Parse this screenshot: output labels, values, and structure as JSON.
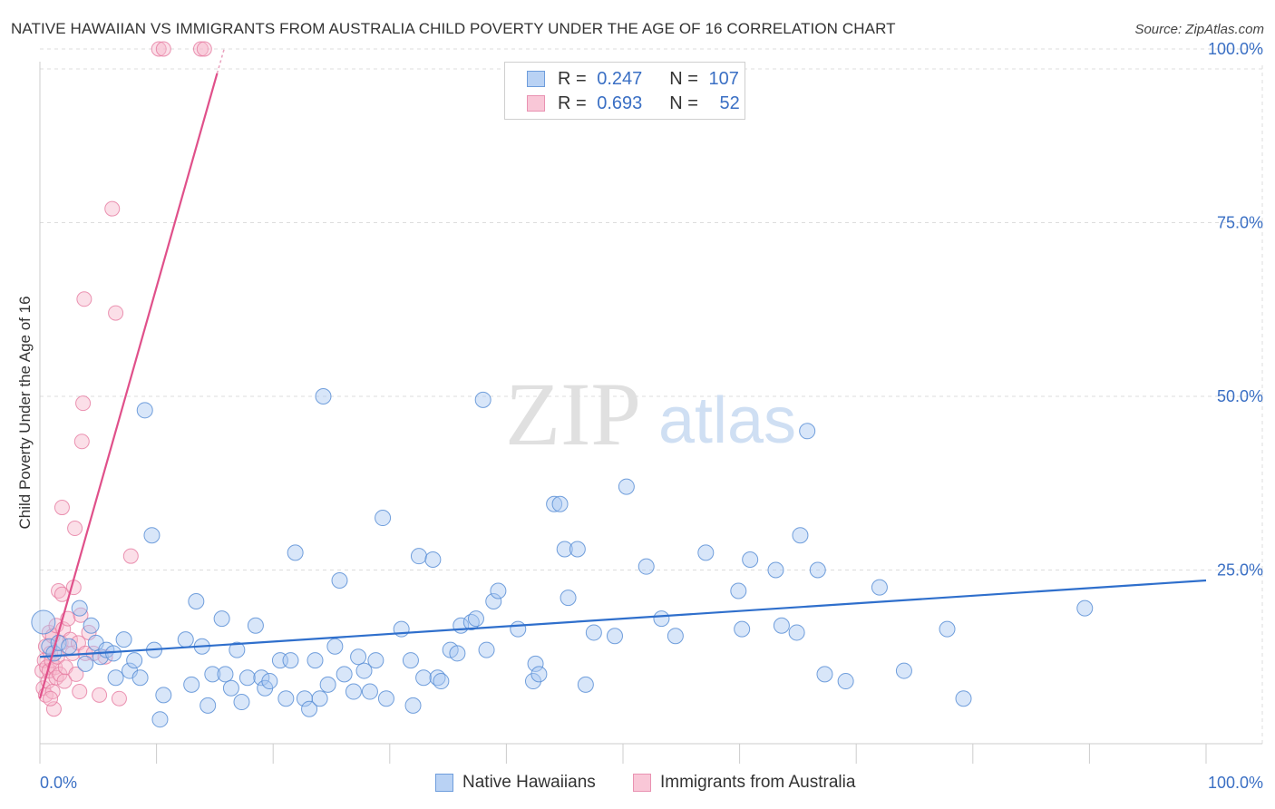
{
  "title": "NATIVE HAWAIIAN VS IMMIGRANTS FROM AUSTRALIA CHILD POVERTY UNDER THE AGE OF 16 CORRELATION CHART",
  "source": "Source: ZipAtlas.com",
  "watermark": {
    "zip": "ZIP",
    "atlas": "atlas"
  },
  "legend": {
    "rows": [
      {
        "r_label": "R = ",
        "r_value": "0.247",
        "n_label": "N = ",
        "n_value": "107"
      },
      {
        "r_label": "R = ",
        "r_value": "0.693",
        "n_label": "N = ",
        "n_value": "52"
      }
    ]
  },
  "bottom_legend": {
    "series1": "Native Hawaiians",
    "series2": "Immigrants from Australia"
  },
  "colors": {
    "blue_fill": "#a9c8f2",
    "blue_stroke": "#5b8fd6",
    "blue_line": "#2f6fcc",
    "pink_fill": "#f7b8cd",
    "pink_stroke": "#e67aa0",
    "pink_line": "#e0508a",
    "axis_text": "#3a6fc4",
    "grid": "#dddddd"
  },
  "chart_data": {
    "type": "scatter",
    "title": "NATIVE HAWAIIAN VS IMMIGRANTS FROM AUSTRALIA CHILD POVERTY UNDER THE AGE OF 16 CORRELATION CHART",
    "xlabel": "",
    "ylabel": "Child Poverty Under the Age of 16",
    "xlim": [
      0,
      100
    ],
    "ylim": [
      0,
      103
    ],
    "x_tick_labels": {
      "left": "0.0%",
      "right": "100.0%"
    },
    "y_ticks": [
      25,
      50,
      75,
      100
    ],
    "y_tick_labels": [
      "25.0%",
      "50.0%",
      "75.0%",
      "100.0%"
    ],
    "grid": true,
    "series": [
      {
        "name": "Native Hawaiians",
        "R": 0.247,
        "N": 107,
        "trend": {
          "x0": 0,
          "y0": 12.5,
          "x1": 100,
          "y1": 23.5
        },
        "points": [
          [
            0.3,
            17.5
          ],
          [
            0.8,
            14
          ],
          [
            1.2,
            13
          ],
          [
            1.6,
            14.5
          ],
          [
            2.5,
            14
          ],
          [
            3.4,
            19.5
          ],
          [
            3.9,
            11.5
          ],
          [
            4.4,
            17
          ],
          [
            4.8,
            14.5
          ],
          [
            5.2,
            12.5
          ],
          [
            5.7,
            13.5
          ],
          [
            6.3,
            13
          ],
          [
            6.5,
            9.5
          ],
          [
            7.2,
            15
          ],
          [
            7.7,
            10.5
          ],
          [
            8.1,
            12
          ],
          [
            8.6,
            9.5
          ],
          [
            9.0,
            48
          ],
          [
            9.6,
            30
          ],
          [
            9.8,
            13.5
          ],
          [
            10.3,
            3.5
          ],
          [
            10.6,
            7
          ],
          [
            12.5,
            15
          ],
          [
            13.0,
            8.5
          ],
          [
            13.4,
            20.5
          ],
          [
            13.9,
            14
          ],
          [
            14.4,
            5.5
          ],
          [
            14.8,
            10
          ],
          [
            15.6,
            18
          ],
          [
            15.9,
            10
          ],
          [
            16.4,
            8
          ],
          [
            16.9,
            13.5
          ],
          [
            17.3,
            6
          ],
          [
            17.8,
            9.5
          ],
          [
            18.5,
            17
          ],
          [
            19.0,
            9.5
          ],
          [
            19.3,
            8
          ],
          [
            19.7,
            9
          ],
          [
            20.6,
            12
          ],
          [
            21.1,
            6.5
          ],
          [
            21.5,
            12
          ],
          [
            21.9,
            27.5
          ],
          [
            22.7,
            6.5
          ],
          [
            23.1,
            5
          ],
          [
            23.6,
            12
          ],
          [
            24.0,
            6.5
          ],
          [
            24.3,
            50
          ],
          [
            24.7,
            8.5
          ],
          [
            25.3,
            14
          ],
          [
            25.7,
            23.5
          ],
          [
            26.1,
            10
          ],
          [
            26.9,
            7.5
          ],
          [
            27.3,
            12.5
          ],
          [
            27.8,
            10.5
          ],
          [
            28.3,
            7.5
          ],
          [
            28.8,
            12
          ],
          [
            29.4,
            32.5
          ],
          [
            29.7,
            6.5
          ],
          [
            31.0,
            16.5
          ],
          [
            31.8,
            12
          ],
          [
            32.0,
            5.5
          ],
          [
            32.5,
            27
          ],
          [
            32.9,
            9.5
          ],
          [
            33.7,
            26.5
          ],
          [
            34.1,
            9.5
          ],
          [
            34.4,
            9
          ],
          [
            35.2,
            13.5
          ],
          [
            35.8,
            13
          ],
          [
            36.1,
            17
          ],
          [
            37.0,
            17.5
          ],
          [
            37.4,
            18
          ],
          [
            38.0,
            49.5
          ],
          [
            38.3,
            13.5
          ],
          [
            38.9,
            20.5
          ],
          [
            39.3,
            22
          ],
          [
            41.0,
            16.5
          ],
          [
            42.3,
            9
          ],
          [
            42.5,
            11.5
          ],
          [
            42.8,
            10
          ],
          [
            44.1,
            34.5
          ],
          [
            44.6,
            34.5
          ],
          [
            45.0,
            28
          ],
          [
            45.3,
            21
          ],
          [
            46.1,
            28
          ],
          [
            46.8,
            8.5
          ],
          [
            47.5,
            16
          ],
          [
            49.3,
            15.5
          ],
          [
            50.3,
            37
          ],
          [
            52.0,
            25.5
          ],
          [
            53.3,
            18
          ],
          [
            54.5,
            15.5
          ],
          [
            57.1,
            27.5
          ],
          [
            59.9,
            22
          ],
          [
            60.2,
            16.5
          ],
          [
            60.9,
            26.5
          ],
          [
            63.1,
            25
          ],
          [
            63.6,
            17
          ],
          [
            64.9,
            16
          ],
          [
            65.2,
            30
          ],
          [
            65.8,
            45
          ],
          [
            66.7,
            25
          ],
          [
            67.3,
            10
          ],
          [
            69.1,
            9
          ],
          [
            72.0,
            22.5
          ],
          [
            74.1,
            10.5
          ],
          [
            77.8,
            16.5
          ],
          [
            79.2,
            6.5
          ],
          [
            89.6,
            19.5
          ]
        ]
      },
      {
        "name": "Immigrants from Australia",
        "R": 0.693,
        "N": 52,
        "trend": {
          "x0": 0,
          "y0": 6.5,
          "x1": 15.2,
          "y1": 96.5
        },
        "trend_dashed": {
          "x0": 15.2,
          "y0": 96.5,
          "x1": 15.8,
          "y1": 100.0
        },
        "points": [
          [
            0.2,
            10.5
          ],
          [
            0.3,
            8
          ],
          [
            0.4,
            12
          ],
          [
            0.5,
            14
          ],
          [
            0.5,
            7
          ],
          [
            0.6,
            11
          ],
          [
            0.7,
            9
          ],
          [
            0.8,
            16
          ],
          [
            0.8,
            10.5
          ],
          [
            0.9,
            13
          ],
          [
            1.0,
            12
          ],
          [
            1.1,
            7.5
          ],
          [
            1.1,
            15.5
          ],
          [
            1.2,
            5
          ],
          [
            1.3,
            11
          ],
          [
            1.4,
            17
          ],
          [
            1.4,
            9.5
          ],
          [
            1.5,
            12.5
          ],
          [
            1.6,
            22
          ],
          [
            1.7,
            10
          ],
          [
            1.8,
            14.5
          ],
          [
            1.9,
            21.5
          ],
          [
            1.9,
            34
          ],
          [
            2.0,
            16.5
          ],
          [
            2.1,
            9
          ],
          [
            2.2,
            11
          ],
          [
            2.4,
            18
          ],
          [
            2.6,
            15
          ],
          [
            2.8,
            13
          ],
          [
            2.9,
            22.5
          ],
          [
            3.0,
            31
          ],
          [
            3.1,
            10
          ],
          [
            3.3,
            14.5
          ],
          [
            3.4,
            7.5
          ],
          [
            3.5,
            18.5
          ],
          [
            3.6,
            43.5
          ],
          [
            3.7,
            49
          ],
          [
            3.8,
            64
          ],
          [
            3.9,
            13
          ],
          [
            4.2,
            16
          ],
          [
            4.6,
            13
          ],
          [
            5.1,
            7
          ],
          [
            5.6,
            12.5
          ],
          [
            6.2,
            77
          ],
          [
            6.5,
            62
          ],
          [
            6.8,
            6.5
          ],
          [
            7.8,
            27
          ],
          [
            10.2,
            100
          ],
          [
            10.6,
            100
          ],
          [
            13.8,
            100
          ],
          [
            14.1,
            100
          ],
          [
            0.9,
            6.5
          ]
        ]
      }
    ]
  }
}
